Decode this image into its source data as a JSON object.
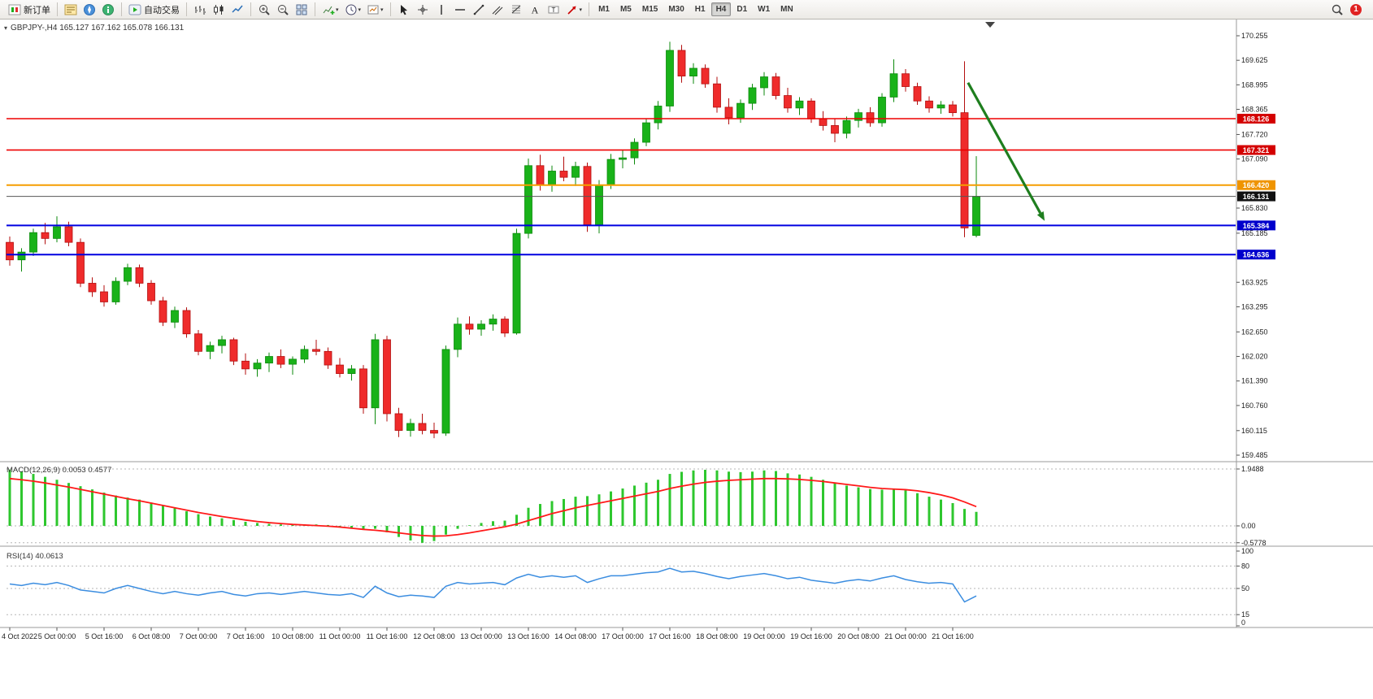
{
  "window": {
    "toolbar": {
      "groups": [
        {
          "items": [
            {
              "icon": "new-order-icon",
              "label": "新订单",
              "name": "new-order-button"
            }
          ]
        },
        {
          "items": [
            {
              "icon": "market-watch-icon",
              "name": "market-watch-button"
            },
            {
              "icon": "navigator-icon",
              "name": "navigator-button"
            },
            {
              "icon": "terminal-icon",
              "name": "terminal-button"
            }
          ]
        },
        {
          "items": [
            {
              "icon": "autotrade-icon",
              "label": "自动交易",
              "name": "autotrading-button"
            }
          ]
        },
        {
          "items": [
            {
              "icon": "bar-chart-icon",
              "name": "bar-chart-button"
            },
            {
              "icon": "candlestick-icon",
              "name": "candlestick-chart-button"
            },
            {
              "icon": "line-chart-icon",
              "name": "line-chart-button"
            }
          ]
        },
        {
          "items": [
            {
              "icon": "zoom-in-icon",
              "name": "zoom-in-button"
            },
            {
              "icon": "zoom-out-icon",
              "name": "zoom-out-button"
            },
            {
              "icon": "tile-windows-icon",
              "name": "tile-windows-button"
            }
          ]
        },
        {
          "items": [
            {
              "icon": "indicators-icon",
              "name": "indicators-button",
              "caret": true
            },
            {
              "icon": "periods-icon",
              "name": "periods-button",
              "caret": true
            },
            {
              "icon": "templates-icon",
              "name": "templates-button",
              "caret": true
            }
          ]
        },
        {
          "items": [
            {
              "icon": "cursor-icon",
              "name": "cursor-button"
            },
            {
              "icon": "crosshair-icon",
              "name": "crosshair-button"
            },
            {
              "icon": "vertical-line-icon",
              "name": "vertical-line-button"
            },
            {
              "icon": "horizontal-line-icon",
              "name": "horizontal-line-button"
            },
            {
              "icon": "trendline-icon",
              "name": "trendline-button"
            },
            {
              "icon": "channel-icon",
              "name": "equidistant-channel-button"
            },
            {
              "icon": "fibonacci-icon",
              "name": "fibonacci-button"
            },
            {
              "icon": "text-icon",
              "name": "text-button"
            },
            {
              "icon": "label-icon",
              "name": "text-label-button"
            },
            {
              "icon": "arrows-icon",
              "name": "arrows-button",
              "caret": true
            }
          ]
        },
        {
          "items": [
            {
              "label": "M1",
              "name": "timeframe-m1-button"
            },
            {
              "label": "M5",
              "name": "timeframe-m5-button"
            },
            {
              "label": "M15",
              "name": "timeframe-m15-button"
            },
            {
              "label": "M30",
              "name": "timeframe-m30-button"
            },
            {
              "label": "H1",
              "name": "timeframe-h1-button"
            },
            {
              "label": "H4",
              "name": "timeframe-h4-button",
              "active": true
            },
            {
              "label": "D1",
              "name": "timeframe-d1-button"
            },
            {
              "label": "W1",
              "name": "timeframe-w1-button"
            },
            {
              "label": "MN",
              "name": "timeframe-mn-button"
            }
          ]
        }
      ],
      "right": {
        "notification_count": "1"
      }
    }
  },
  "chart_data": {
    "type": "candlestick",
    "symbol_line": "GBPJPY-,H4  165.127 167.162 165.078 166.131",
    "ylim": [
      159.3,
      170.5
    ],
    "price_axis_ticks": [
      "170.255",
      "169.625",
      "168.995",
      "168.365",
      "167.720",
      "167.090",
      "165.830",
      "165.185",
      "163.925",
      "163.295",
      "162.650",
      "162.020",
      "161.390",
      "160.760",
      "160.115",
      "159.485"
    ],
    "time_axis": [
      "4 Oct 2022",
      "5 Oct 00:00",
      "5 Oct 16:00",
      "6 Oct 08:00",
      "7 Oct 00:00",
      "7 Oct 16:00",
      "10 Oct 08:00",
      "11 Oct 00:00",
      "11 Oct 16:00",
      "12 Oct 08:00",
      "13 Oct 00:00",
      "13 Oct 16:00",
      "14 Oct 08:00",
      "17 Oct 00:00",
      "17 Oct 16:00",
      "18 Oct 08:00",
      "19 Oct 00:00",
      "19 Oct 16:00",
      "20 Oct 08:00",
      "21 Oct 00:00",
      "21 Oct 16:00"
    ],
    "candles": [
      [
        164.95,
        165.1,
        164.35,
        164.5
      ],
      [
        164.5,
        164.8,
        164.2,
        164.7
      ],
      [
        164.7,
        165.3,
        164.6,
        165.2
      ],
      [
        165.2,
        165.45,
        164.9,
        165.05
      ],
      [
        165.05,
        165.62,
        164.95,
        165.35
      ],
      [
        165.35,
        165.48,
        164.85,
        164.95
      ],
      [
        164.95,
        165.05,
        163.8,
        163.9
      ],
      [
        163.9,
        164.05,
        163.55,
        163.68
      ],
      [
        163.68,
        163.85,
        163.3,
        163.42
      ],
      [
        163.42,
        164.05,
        163.35,
        163.95
      ],
      [
        163.95,
        164.4,
        163.85,
        164.3
      ],
      [
        164.3,
        164.38,
        163.8,
        163.9
      ],
      [
        163.9,
        163.98,
        163.35,
        163.45
      ],
      [
        163.45,
        163.55,
        162.8,
        162.9
      ],
      [
        162.9,
        163.3,
        162.75,
        163.2
      ],
      [
        163.2,
        163.28,
        162.5,
        162.6
      ],
      [
        162.6,
        162.7,
        162.05,
        162.15
      ],
      [
        162.15,
        162.4,
        161.95,
        162.3
      ],
      [
        162.3,
        162.55,
        162.1,
        162.45
      ],
      [
        162.45,
        162.5,
        161.8,
        161.9
      ],
      [
        161.9,
        162.1,
        161.55,
        161.7
      ],
      [
        161.7,
        161.95,
        161.5,
        161.85
      ],
      [
        161.85,
        162.12,
        161.62,
        162.02
      ],
      [
        162.02,
        162.2,
        161.72,
        161.82
      ],
      [
        161.82,
        162.02,
        161.55,
        161.95
      ],
      [
        161.95,
        162.3,
        161.85,
        162.2
      ],
      [
        162.2,
        162.45,
        162.05,
        162.15
      ],
      [
        162.15,
        162.25,
        161.7,
        161.8
      ],
      [
        161.8,
        161.98,
        161.48,
        161.58
      ],
      [
        161.58,
        161.8,
        161.4,
        161.7
      ],
      [
        161.7,
        161.8,
        160.55,
        160.7
      ],
      [
        160.7,
        162.6,
        160.28,
        162.45
      ],
      [
        162.45,
        162.55,
        160.35,
        160.55
      ],
      [
        160.55,
        160.7,
        159.95,
        160.12
      ],
      [
        160.12,
        160.42,
        159.96,
        160.3
      ],
      [
        160.3,
        160.55,
        160.02,
        160.12
      ],
      [
        160.12,
        160.32,
        159.92,
        160.05
      ],
      [
        160.05,
        162.3,
        159.98,
        162.2
      ],
      [
        162.2,
        163.02,
        162.0,
        162.85
      ],
      [
        162.85,
        163.05,
        162.58,
        162.72
      ],
      [
        162.72,
        162.95,
        162.55,
        162.85
      ],
      [
        162.85,
        163.1,
        162.68,
        162.98
      ],
      [
        162.98,
        163.05,
        162.52,
        162.62
      ],
      [
        162.62,
        165.3,
        162.58,
        165.18
      ],
      [
        165.18,
        167.1,
        165.05,
        166.92
      ],
      [
        166.92,
        167.2,
        166.28,
        166.42
      ],
      [
        166.42,
        166.92,
        166.25,
        166.78
      ],
      [
        166.78,
        167.15,
        166.52,
        166.62
      ],
      [
        166.62,
        167.02,
        166.4,
        166.9
      ],
      [
        166.9,
        167.0,
        165.22,
        165.4
      ],
      [
        165.4,
        166.55,
        165.18,
        166.42
      ],
      [
        166.42,
        167.22,
        166.32,
        167.08
      ],
      [
        167.08,
        167.32,
        166.85,
        167.12
      ],
      [
        167.12,
        167.62,
        166.95,
        167.52
      ],
      [
        167.52,
        168.12,
        167.42,
        168.02
      ],
      [
        168.02,
        168.58,
        167.85,
        168.45
      ],
      [
        168.45,
        170.1,
        168.3,
        169.88
      ],
      [
        169.88,
        170.02,
        169.05,
        169.22
      ],
      [
        169.22,
        169.55,
        169.02,
        169.42
      ],
      [
        169.42,
        169.52,
        168.92,
        169.02
      ],
      [
        169.02,
        169.2,
        168.28,
        168.42
      ],
      [
        168.42,
        168.65,
        167.98,
        168.15
      ],
      [
        168.15,
        168.62,
        168.02,
        168.52
      ],
      [
        168.52,
        169.02,
        168.35,
        168.92
      ],
      [
        168.92,
        169.32,
        168.72,
        169.2
      ],
      [
        169.2,
        169.3,
        168.62,
        168.72
      ],
      [
        168.72,
        168.92,
        168.28,
        168.4
      ],
      [
        168.4,
        168.68,
        168.22,
        168.58
      ],
      [
        168.58,
        168.65,
        168.02,
        168.12
      ],
      [
        168.12,
        168.32,
        167.82,
        167.95
      ],
      [
        167.95,
        168.12,
        167.52,
        167.75
      ],
      [
        167.75,
        168.18,
        167.62,
        168.08
      ],
      [
        168.08,
        168.38,
        167.9,
        168.28
      ],
      [
        168.28,
        168.42,
        167.92,
        168.02
      ],
      [
        168.02,
        168.78,
        167.92,
        168.68
      ],
      [
        168.68,
        169.65,
        168.55,
        169.28
      ],
      [
        169.28,
        169.4,
        168.82,
        168.95
      ],
      [
        168.95,
        169.05,
        168.48,
        168.58
      ],
      [
        168.58,
        168.7,
        168.28,
        168.4
      ],
      [
        168.4,
        168.58,
        168.25,
        168.48
      ],
      [
        168.48,
        168.58,
        168.18,
        168.28
      ],
      [
        168.28,
        169.6,
        165.08,
        165.32
      ],
      [
        165.127,
        167.162,
        165.078,
        166.131
      ]
    ],
    "hlines": [
      {
        "price": 168.126,
        "label": "168.126",
        "color": "#ee0000",
        "width": 1.6,
        "label_bg": "#d40000",
        "name": "resistance-line-168126"
      },
      {
        "price": 167.321,
        "label": "167.321",
        "color": "#ee0000",
        "width": 1.6,
        "label_bg": "#d40000",
        "name": "resistance-line-167321"
      },
      {
        "price": 166.42,
        "label": "166.420",
        "color": "#f59d00",
        "width": 2,
        "label_bg": "#ef9400",
        "name": "pivot-line-166420"
      },
      {
        "price": 166.131,
        "label": "166.131",
        "color": "#555555",
        "width": 1,
        "label_bg": "#111111",
        "name": "current-price-line"
      },
      {
        "price": 165.384,
        "label": "165.384",
        "color": "#0000e0",
        "width": 2,
        "label_bg": "#0000cc",
        "name": "support-line-165384"
      },
      {
        "price": 164.636,
        "label": "164.636",
        "color": "#0000e0",
        "width": 2,
        "label_bg": "#0000cc",
        "name": "support-line-164636"
      }
    ],
    "arrow": {
      "from": {
        "t": 81.3,
        "price": 169.05
      },
      "to": {
        "t": 87.8,
        "price": 165.5
      },
      "color": "#1e7e1e"
    },
    "macd": {
      "title": "MACD(12,26,9) 0.0053 0.4577",
      "scale": [
        {
          "label": "1.9488",
          "value": 1.9488
        },
        {
          "label": "0.00",
          "value": 0
        },
        {
          "label": "-0.5778",
          "value": -0.5778
        }
      ],
      "levels": [
        1.9488,
        0,
        -0.5778
      ],
      "hist": [
        1.93,
        1.87,
        1.78,
        1.68,
        1.58,
        1.47,
        1.36,
        1.25,
        1.14,
        1.04,
        0.97,
        0.9,
        0.8,
        0.7,
        0.6,
        0.5,
        0.4,
        0.32,
        0.26,
        0.2,
        0.14,
        0.1,
        0.07,
        0.05,
        0.04,
        0.05,
        0.05,
        0.03,
        -0.02,
        -0.06,
        -0.14,
        -0.1,
        -0.22,
        -0.38,
        -0.5,
        -0.58,
        -0.52,
        -0.3,
        -0.1,
        0.02,
        0.1,
        0.16,
        0.18,
        0.38,
        0.62,
        0.75,
        0.85,
        0.92,
        1.0,
        1.02,
        1.08,
        1.18,
        1.28,
        1.38,
        1.48,
        1.58,
        1.78,
        1.85,
        1.9,
        1.92,
        1.9,
        1.86,
        1.84,
        1.86,
        1.9,
        1.88,
        1.8,
        1.76,
        1.68,
        1.58,
        1.46,
        1.38,
        1.32,
        1.26,
        1.24,
        1.28,
        1.22,
        1.12,
        1.0,
        0.9,
        0.78,
        0.58,
        0.48
      ],
      "signal": [
        1.62,
        1.58,
        1.53,
        1.47,
        1.4,
        1.33,
        1.25,
        1.17,
        1.09,
        1.01,
        0.93,
        0.86,
        0.78,
        0.7,
        0.62,
        0.54,
        0.46,
        0.39,
        0.32,
        0.26,
        0.2,
        0.15,
        0.11,
        0.08,
        0.05,
        0.03,
        0.01,
        -0.01,
        -0.04,
        -0.08,
        -0.12,
        -0.15,
        -0.19,
        -0.24,
        -0.29,
        -0.33,
        -0.35,
        -0.34,
        -0.3,
        -0.24,
        -0.17,
        -0.1,
        -0.03,
        0.06,
        0.18,
        0.3,
        0.42,
        0.52,
        0.62,
        0.7,
        0.78,
        0.86,
        0.94,
        1.02,
        1.1,
        1.18,
        1.28,
        1.36,
        1.43,
        1.49,
        1.53,
        1.56,
        1.58,
        1.6,
        1.62,
        1.62,
        1.61,
        1.59,
        1.56,
        1.52,
        1.47,
        1.42,
        1.37,
        1.32,
        1.28,
        1.26,
        1.24,
        1.2,
        1.14,
        1.06,
        0.96,
        0.82,
        0.66
      ]
    },
    "rsi": {
      "title": "RSI(14) 40.0613",
      "scale": [
        {
          "label": "100",
          "value": 100
        },
        {
          "label": "80",
          "value": 80
        },
        {
          "label": "50",
          "value": 50
        },
        {
          "label": "15",
          "value": 15
        },
        {
          "label": "0",
          "value": 0
        }
      ],
      "levels": [
        80,
        50,
        15
      ],
      "values": [
        56,
        54,
        57,
        55,
        58,
        54,
        48,
        46,
        44,
        50,
        54,
        50,
        46,
        43,
        46,
        43,
        41,
        44,
        46,
        42,
        40,
        43,
        44,
        42,
        44,
        46,
        44,
        42,
        41,
        43,
        38,
        53,
        44,
        39,
        41,
        40,
        38,
        53,
        58,
        56,
        57,
        58,
        55,
        64,
        69,
        65,
        67,
        65,
        67,
        58,
        63,
        67,
        67,
        69,
        71,
        72,
        77,
        72,
        73,
        70,
        66,
        63,
        66,
        68,
        70,
        67,
        63,
        65,
        61,
        59,
        57,
        60,
        62,
        60,
        64,
        67,
        62,
        59,
        57,
        58,
        56,
        32,
        40
      ]
    },
    "colors": {
      "bull": "#19b219",
      "bear": "#ef2b2b",
      "macd_hist": "#2ec72e",
      "macd_signal": "#ff1a1a",
      "rsi_line": "#3b8de0"
    }
  }
}
